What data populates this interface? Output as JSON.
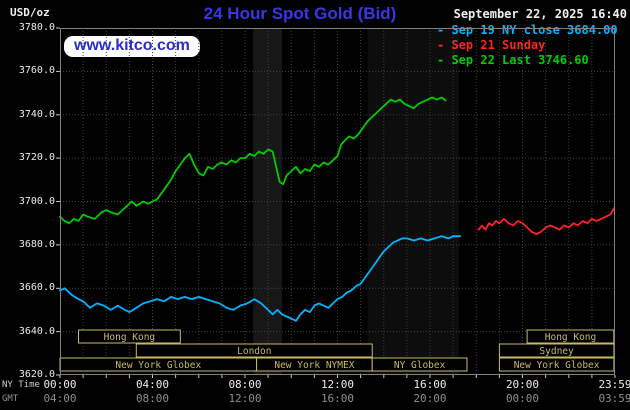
{
  "header": {
    "unit": "USD/oz",
    "title": "24 Hour Spot Gold (Bid)",
    "datetime": "September 22, 2025 16:40",
    "watermark": "www.kitco.com"
  },
  "legend": {
    "items": [
      {
        "marker": "-",
        "label": "Sep 19 NY close 3684.00",
        "color": "#00b4ff"
      },
      {
        "marker": "-",
        "label": "Sep 21 Sunday",
        "color": "#ff2222"
      },
      {
        "marker": "-",
        "label": "Sep 22 Last 3746.60",
        "color": "#00cc00"
      }
    ]
  },
  "colors": {
    "title": "#3737e8",
    "watermark_text": "#2b2bcc",
    "watermark_bg": "#ffffff",
    "grid": "#3f443c",
    "session": "#c9ba66",
    "border": "#828282",
    "axis_text": "#ededed",
    "gmt_text": "#8f8f8f"
  },
  "chart_data": {
    "type": "line",
    "title": "24 Hour Spot Gold (Bid)",
    "unit": "USD/oz",
    "x_axis": {
      "label": "NY Time",
      "secondary_label": "GMT",
      "range_hours": [
        0,
        24
      ],
      "tick_hours": [
        0,
        4,
        8,
        12,
        16,
        20,
        24
      ],
      "ny_tick_labels": [
        "00:00",
        "04:00",
        "08:00",
        "12:00",
        "16:00",
        "20:00",
        "23:59"
      ],
      "gmt_tick_labels": [
        "04:00",
        "08:00",
        "12:00",
        "16:00",
        "20:00",
        "00:00",
        "03:59"
      ]
    },
    "y_axis": {
      "label": "USD/oz",
      "range": [
        3620,
        3780
      ],
      "tick_step": 20,
      "tick_labels": [
        "3780.0",
        "3760.0",
        "3740.0",
        "3720.0",
        "3700.0",
        "3680.0",
        "3660.0",
        "3640.0",
        "3620.0"
      ]
    },
    "shaded_bands": [
      {
        "start_hour": 8.35,
        "end_hour": 9.6,
        "color": "rgba(255,255,255,0.09)"
      },
      {
        "start_hour": 13.3,
        "end_hour": 17.25,
        "color": "rgba(255,255,255,0.05)"
      }
    ],
    "market_sessions": [
      {
        "row": 0,
        "label": "Hong Kong",
        "start_hour": 0.8,
        "end_hour": 5.2
      },
      {
        "row": 0,
        "label": "Hong Kong",
        "start_hour": 20.2,
        "end_hour": 23.95
      },
      {
        "row": 1,
        "label": "London",
        "start_hour": 3.3,
        "end_hour": 13.5
      },
      {
        "row": 1,
        "label": "Sydney",
        "start_hour": 19.0,
        "end_hour": 23.95
      },
      {
        "row": 2,
        "label": "New York Globex",
        "start_hour": 0.0,
        "end_hour": 8.5
      },
      {
        "row": 2,
        "label": "New York NYMEX",
        "start_hour": 8.5,
        "end_hour": 13.5
      },
      {
        "row": 2,
        "label": "NY Globex",
        "start_hour": 13.5,
        "end_hour": 17.6
      },
      {
        "row": 2,
        "label": "New York Globex",
        "start_hour": 19.0,
        "end_hour": 23.95
      }
    ],
    "series": [
      {
        "id": "sep19",
        "name": "Sep 19 NY close",
        "close": 3684.0,
        "color": "#00b4ff",
        "points": [
          [
            0.0,
            3659
          ],
          [
            0.2,
            3660
          ],
          [
            0.5,
            3657
          ],
          [
            0.8,
            3655
          ],
          [
            1.0,
            3654
          ],
          [
            1.3,
            3651
          ],
          [
            1.6,
            3653
          ],
          [
            1.9,
            3652
          ],
          [
            2.2,
            3650
          ],
          [
            2.5,
            3652
          ],
          [
            2.8,
            3650
          ],
          [
            3.0,
            3649
          ],
          [
            3.3,
            3651
          ],
          [
            3.6,
            3653
          ],
          [
            3.9,
            3654
          ],
          [
            4.2,
            3655
          ],
          [
            4.5,
            3654
          ],
          [
            4.8,
            3656
          ],
          [
            5.1,
            3655
          ],
          [
            5.4,
            3656
          ],
          [
            5.7,
            3655
          ],
          [
            6.0,
            3656
          ],
          [
            6.3,
            3655
          ],
          [
            6.6,
            3654
          ],
          [
            6.9,
            3653
          ],
          [
            7.2,
            3651
          ],
          [
            7.5,
            3650
          ],
          [
            7.8,
            3652
          ],
          [
            8.1,
            3653
          ],
          [
            8.4,
            3655
          ],
          [
            8.7,
            3653
          ],
          [
            9.0,
            3650
          ],
          [
            9.2,
            3648
          ],
          [
            9.4,
            3650
          ],
          [
            9.6,
            3648
          ],
          [
            9.8,
            3647
          ],
          [
            10.0,
            3646
          ],
          [
            10.2,
            3645
          ],
          [
            10.4,
            3648
          ],
          [
            10.6,
            3650
          ],
          [
            10.8,
            3649
          ],
          [
            11.0,
            3652
          ],
          [
            11.2,
            3653
          ],
          [
            11.4,
            3652
          ],
          [
            11.6,
            3651
          ],
          [
            11.8,
            3653
          ],
          [
            12.0,
            3655
          ],
          [
            12.2,
            3656
          ],
          [
            12.4,
            3658
          ],
          [
            12.6,
            3659
          ],
          [
            12.8,
            3661
          ],
          [
            13.0,
            3662
          ],
          [
            13.2,
            3665
          ],
          [
            13.4,
            3668
          ],
          [
            13.6,
            3671
          ],
          [
            13.8,
            3674
          ],
          [
            14.0,
            3677
          ],
          [
            14.2,
            3679
          ],
          [
            14.4,
            3681
          ],
          [
            14.6,
            3682
          ],
          [
            14.8,
            3683
          ],
          [
            15.0,
            3683
          ],
          [
            15.3,
            3682
          ],
          [
            15.6,
            3683
          ],
          [
            15.9,
            3682
          ],
          [
            16.2,
            3683
          ],
          [
            16.5,
            3684
          ],
          [
            16.8,
            3683
          ],
          [
            17.0,
            3684
          ],
          [
            17.3,
            3684
          ]
        ]
      },
      {
        "id": "sep21",
        "name": "Sep 21 Sunday",
        "color": "#ff2222",
        "points": [
          [
            18.1,
            3687
          ],
          [
            18.25,
            3689
          ],
          [
            18.4,
            3687
          ],
          [
            18.55,
            3690
          ],
          [
            18.7,
            3689
          ],
          [
            18.85,
            3691
          ],
          [
            19.0,
            3690
          ],
          [
            19.2,
            3692
          ],
          [
            19.4,
            3690
          ],
          [
            19.6,
            3689
          ],
          [
            19.8,
            3691
          ],
          [
            20.0,
            3690
          ],
          [
            20.2,
            3688
          ],
          [
            20.4,
            3686
          ],
          [
            20.6,
            3685
          ],
          [
            20.8,
            3686
          ],
          [
            21.0,
            3688
          ],
          [
            21.2,
            3689
          ],
          [
            21.4,
            3688
          ],
          [
            21.6,
            3687
          ],
          [
            21.8,
            3689
          ],
          [
            22.0,
            3688
          ],
          [
            22.2,
            3690
          ],
          [
            22.4,
            3689
          ],
          [
            22.6,
            3691
          ],
          [
            22.8,
            3690
          ],
          [
            23.0,
            3692
          ],
          [
            23.2,
            3691
          ],
          [
            23.4,
            3692
          ],
          [
            23.6,
            3693
          ],
          [
            23.8,
            3694
          ],
          [
            23.97,
            3697
          ]
        ]
      },
      {
        "id": "sep22",
        "name": "Sep 22 Last",
        "last": 3746.6,
        "color": "#00cc00",
        "points": [
          [
            0.0,
            3693
          ],
          [
            0.2,
            3691
          ],
          [
            0.4,
            3690
          ],
          [
            0.6,
            3692
          ],
          [
            0.8,
            3691
          ],
          [
            1.0,
            3694
          ],
          [
            1.2,
            3693
          ],
          [
            1.5,
            3692
          ],
          [
            1.8,
            3695
          ],
          [
            2.0,
            3696
          ],
          [
            2.2,
            3695
          ],
          [
            2.5,
            3694
          ],
          [
            2.8,
            3697
          ],
          [
            3.1,
            3700
          ],
          [
            3.3,
            3698
          ],
          [
            3.6,
            3700
          ],
          [
            3.8,
            3699
          ],
          [
            4.0,
            3700
          ],
          [
            4.2,
            3701
          ],
          [
            4.4,
            3704
          ],
          [
            4.6,
            3707
          ],
          [
            4.8,
            3710
          ],
          [
            5.0,
            3714
          ],
          [
            5.2,
            3717
          ],
          [
            5.4,
            3720
          ],
          [
            5.6,
            3722
          ],
          [
            5.8,
            3717
          ],
          [
            6.0,
            3713
          ],
          [
            6.2,
            3712
          ],
          [
            6.4,
            3716
          ],
          [
            6.6,
            3715
          ],
          [
            6.8,
            3717
          ],
          [
            7.0,
            3718
          ],
          [
            7.2,
            3717
          ],
          [
            7.4,
            3719
          ],
          [
            7.6,
            3718
          ],
          [
            7.8,
            3720
          ],
          [
            8.0,
            3720
          ],
          [
            8.2,
            3722
          ],
          [
            8.4,
            3721
          ],
          [
            8.6,
            3723
          ],
          [
            8.8,
            3722
          ],
          [
            9.0,
            3724
          ],
          [
            9.2,
            3723
          ],
          [
            9.35,
            3716
          ],
          [
            9.5,
            3709
          ],
          [
            9.65,
            3708
          ],
          [
            9.8,
            3712
          ],
          [
            10.0,
            3714
          ],
          [
            10.2,
            3716
          ],
          [
            10.4,
            3713
          ],
          [
            10.6,
            3715
          ],
          [
            10.8,
            3714
          ],
          [
            11.0,
            3717
          ],
          [
            11.2,
            3716
          ],
          [
            11.4,
            3718
          ],
          [
            11.6,
            3717
          ],
          [
            11.8,
            3719
          ],
          [
            12.0,
            3721
          ],
          [
            12.15,
            3726
          ],
          [
            12.3,
            3728
          ],
          [
            12.5,
            3730
          ],
          [
            12.7,
            3729
          ],
          [
            12.9,
            3731
          ],
          [
            13.1,
            3734
          ],
          [
            13.3,
            3737
          ],
          [
            13.5,
            3739
          ],
          [
            13.7,
            3741
          ],
          [
            13.9,
            3743
          ],
          [
            14.1,
            3745
          ],
          [
            14.3,
            3747
          ],
          [
            14.5,
            3746
          ],
          [
            14.7,
            3747
          ],
          [
            14.9,
            3745
          ],
          [
            15.1,
            3744
          ],
          [
            15.3,
            3743
          ],
          [
            15.5,
            3745
          ],
          [
            15.7,
            3746
          ],
          [
            15.9,
            3747
          ],
          [
            16.1,
            3748
          ],
          [
            16.3,
            3747
          ],
          [
            16.5,
            3748
          ],
          [
            16.67,
            3746.6
          ]
        ]
      }
    ]
  }
}
